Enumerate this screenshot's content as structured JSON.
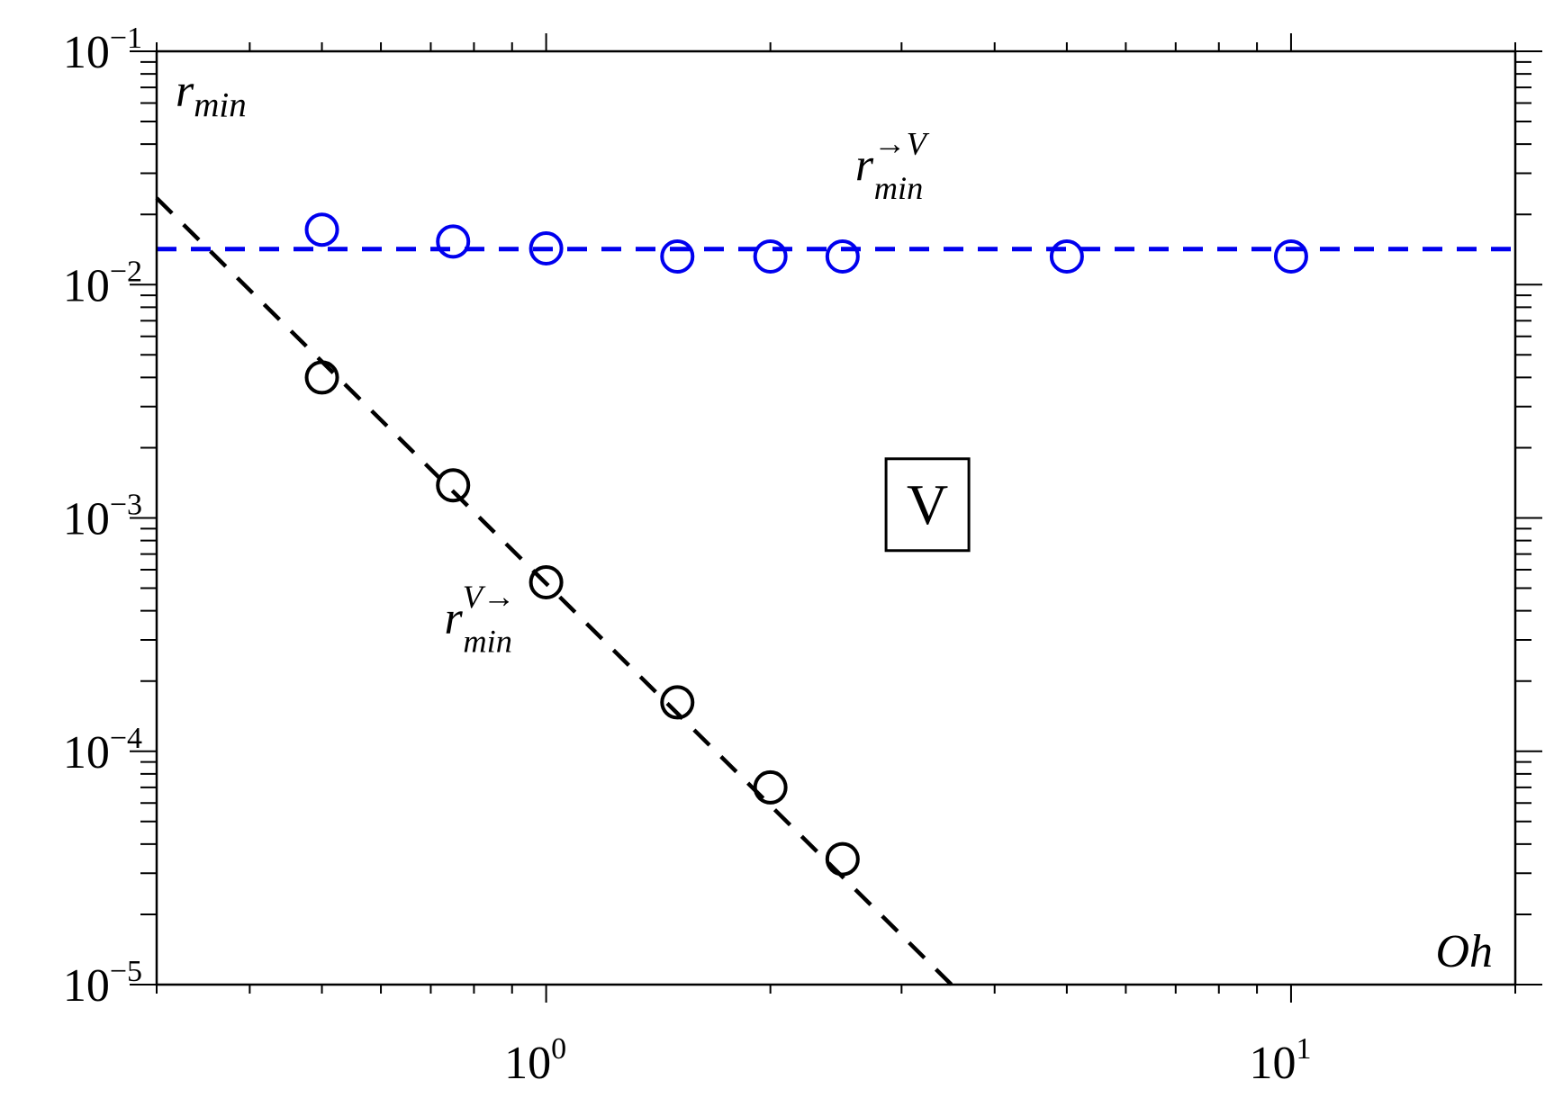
{
  "chart_data": {
    "type": "scatter",
    "x_scale": "log",
    "y_scale": "log",
    "xlim": [
      0.3,
      20
    ],
    "ylim": [
      1e-05,
      0.1
    ],
    "grid": false,
    "x_ticks": [
      {
        "value": 1,
        "base": "10",
        "exp": "0"
      },
      {
        "value": 10,
        "base": "10",
        "exp": "1"
      }
    ],
    "y_ticks": [
      {
        "value": 0.1,
        "base": "10",
        "exp": "−1"
      },
      {
        "value": 0.01,
        "base": "10",
        "exp": "−2"
      },
      {
        "value": 0.001,
        "base": "10",
        "exp": "−3"
      },
      {
        "value": 0.0001,
        "base": "10",
        "exp": "−4"
      },
      {
        "value": 1e-05,
        "base": "10",
        "exp": "−5"
      }
    ],
    "xlabel": "Oh",
    "ylabel": {
      "base": "r",
      "sub": "min"
    },
    "series": [
      {
        "color": "#0000ee",
        "points": [
          {
            "x": 0.5,
            "y": 0.0172
          },
          {
            "x": 0.75,
            "y": 0.0153
          },
          {
            "x": 1.0,
            "y": 0.0143
          },
          {
            "x": 1.5,
            "y": 0.0132
          },
          {
            "x": 2.0,
            "y": 0.0132
          },
          {
            "x": 2.5,
            "y": 0.0132
          },
          {
            "x": 5.0,
            "y": 0.0132
          },
          {
            "x": 10.0,
            "y": 0.0132
          }
        ],
        "fit_line": {
          "style": "dashed",
          "x": [
            0.3,
            20
          ],
          "y": [
            0.0142,
            0.0142
          ]
        },
        "label": {
          "base": "r",
          "sub": "min",
          "sup": "→V",
          "x": 2.6,
          "y": 0.028
        }
      },
      {
        "color": "#000000",
        "points": [
          {
            "x": 0.5,
            "y": 0.004
          },
          {
            "x": 0.75,
            "y": 0.00138
          },
          {
            "x": 1.0,
            "y": 0.00053
          },
          {
            "x": 1.5,
            "y": 0.000162
          },
          {
            "x": 2.0,
            "y": 7e-05
          },
          {
            "x": 2.5,
            "y": 3.45e-05
          }
        ],
        "fit_line": {
          "style": "dashed",
          "x": [
            0.3,
            3.5
          ],
          "y": [
            0.0235,
            1e-05
          ]
        },
        "label": {
          "base": "r",
          "sub": "min",
          "sup": "V→",
          "x": 0.73,
          "y": 0.00032
        }
      }
    ],
    "annotations": [
      {
        "text": "V",
        "boxed": true,
        "x": 3.25,
        "y": 0.00115
      }
    ]
  }
}
